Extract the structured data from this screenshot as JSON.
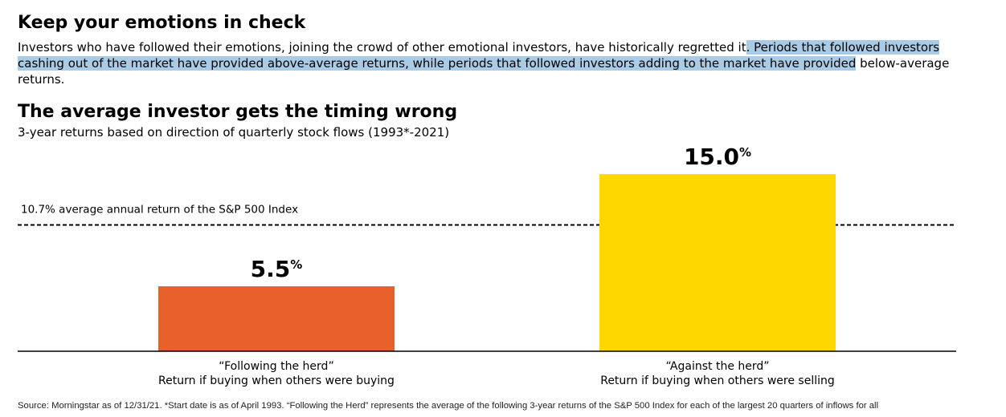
{
  "header": {
    "title": "Keep your emotions in check",
    "intro_plain": "Investors who have followed their emotions, joining the crowd of other emotional investors, have historically regretted it",
    "intro_highlighted": ". Periods that followed investors cashing out of the market have provided above-average returns, while periods that followed investors adding to the market have provided",
    "intro_tail": " below-average returns."
  },
  "chart_data": {
    "type": "bar",
    "title": "The average investor gets the timing wrong",
    "subtitle": "3-year returns based on direction of quarterly stock flows (1993*-2021)",
    "categories": [
      {
        "line1": "“Following the herd”",
        "line2": "Return if buying when others were buying"
      },
      {
        "line1": "“Against the herd”",
        "line2": "Return if buying when others were selling"
      }
    ],
    "values": [
      5.5,
      15.0
    ],
    "value_labels": [
      "5.5",
      "15.0"
    ],
    "unit": "%",
    "colors": [
      "#e8612c",
      "#ffd800"
    ],
    "reference_line": {
      "value": 10.7,
      "label": "10.7% average annual return of the S&P 500 Index",
      "style": "dashed"
    },
    "ylim": [
      0,
      16.3
    ],
    "grid": false,
    "legend": "none"
  },
  "footer": {
    "source": "Source: Morningstar as of 12/31/21. *Start date is as of April 1993. “Following the Herd” represents the average of the following 3-year returns of the S&P 500 Index for each of the largest 20 quarters of  inflows for all"
  }
}
